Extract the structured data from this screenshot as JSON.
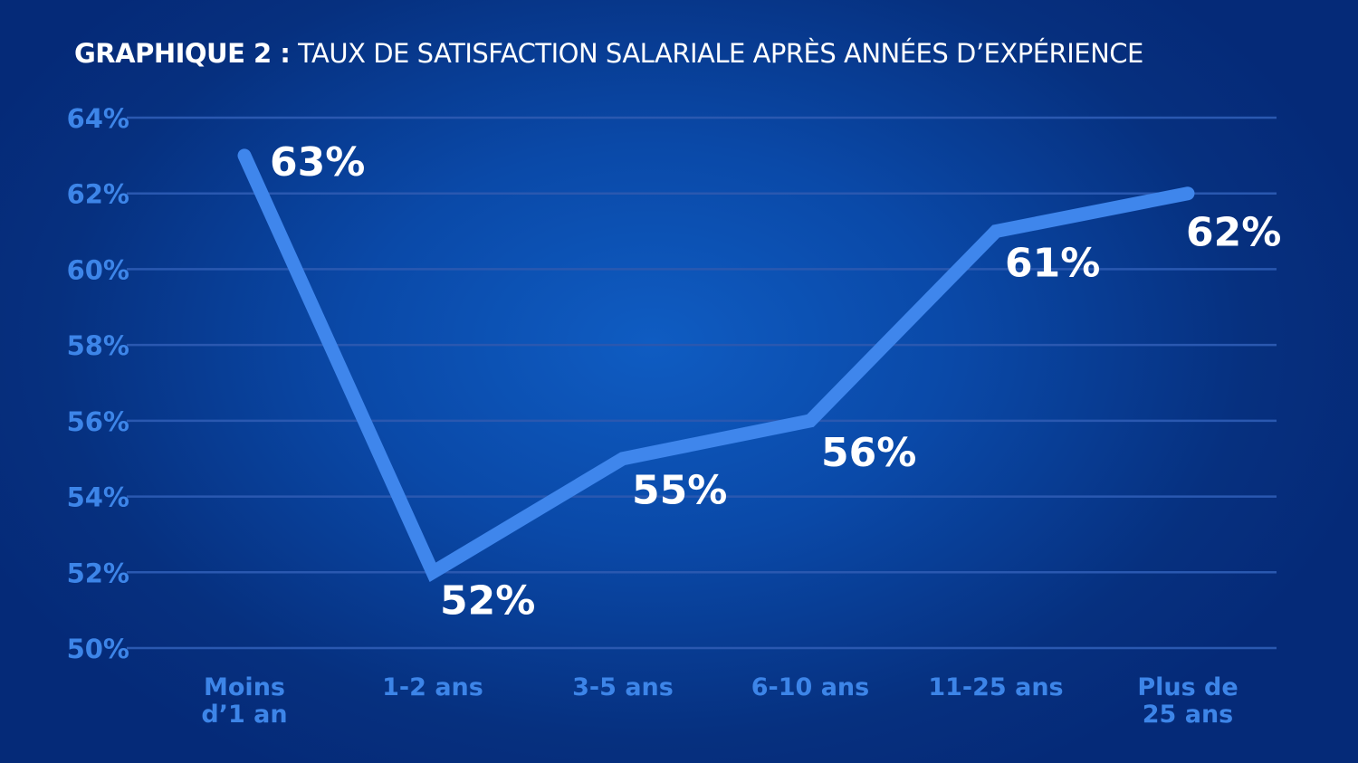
{
  "chart_data": {
    "type": "line",
    "title_bold": "GRAPHIQUE 2 :",
    "title_rest": "TAUX DE SATISFACTION SALARIALE APRÈS ANNÉES D’EXPÉRIENCE",
    "categories": [
      [
        "Moins",
        "d’1 an"
      ],
      [
        "1-2 ans"
      ],
      [
        "3-5 ans"
      ],
      [
        "6-10 ans"
      ],
      [
        "11-25 ans"
      ],
      [
        "Plus de",
        "25 ans"
      ]
    ],
    "values": [
      63,
      52,
      55,
      56,
      61,
      62
    ],
    "data_labels": [
      "63%",
      "52%",
      "55%",
      "56%",
      "61%",
      "62%"
    ],
    "yticks": [
      50,
      52,
      54,
      56,
      58,
      60,
      62,
      64
    ],
    "ytick_labels": [
      "50%",
      "52%",
      "54%",
      "56%",
      "58%",
      "60%",
      "62%",
      "64%"
    ],
    "ylim": [
      50,
      64
    ],
    "grid": true,
    "colors": {
      "line": "#3f86ec",
      "axis_text": "#3d85e8",
      "grid": "#2a58b0",
      "data_label": "#ffffff"
    }
  }
}
